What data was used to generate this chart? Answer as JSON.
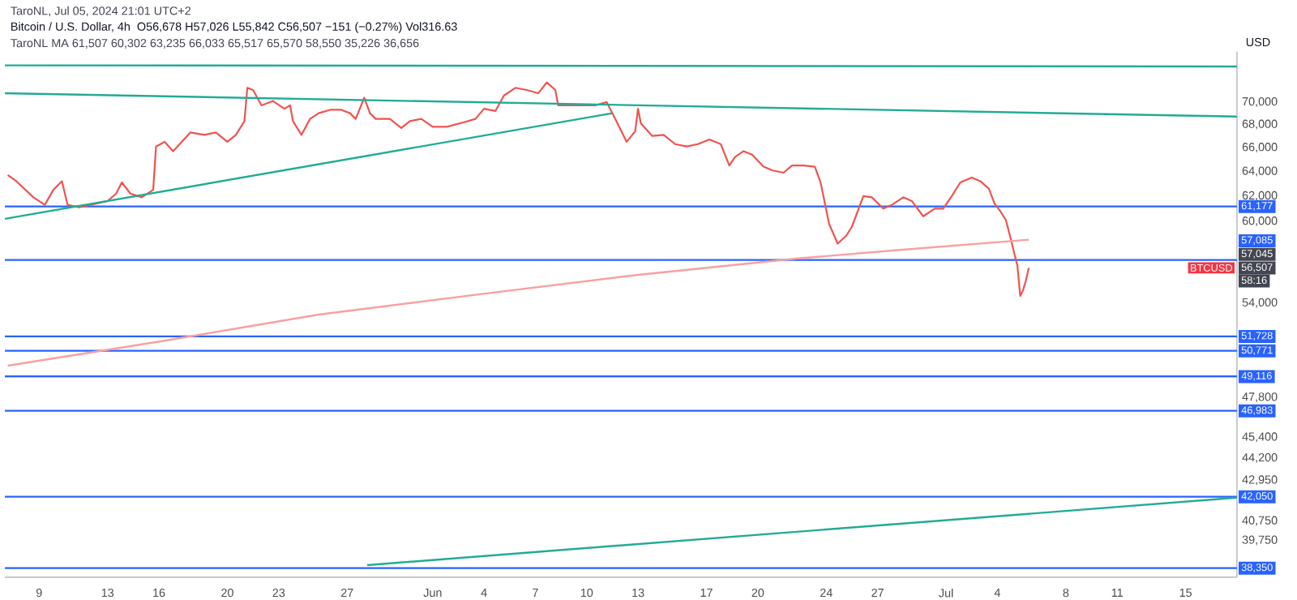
{
  "chart_data": {
    "type": "line",
    "title": "Bitcoin / U.S. Dollar, 4h",
    "subtitle": "O56,678 H57,026 L55,842 C56,507 −151 (−0.27%) Vol316.63",
    "ylabel": "USD",
    "log": "y",
    "xlim": [
      "2024-05-07",
      "2024-07-18"
    ],
    "ylim": [
      37900,
      74700
    ],
    "xticks": [
      {
        "value": "2024-05-09",
        "label": "9"
      },
      {
        "value": "2024-05-13",
        "label": "13"
      },
      {
        "value": "2024-05-16",
        "label": "16"
      },
      {
        "value": "2024-05-20",
        "label": "20"
      },
      {
        "value": "2024-05-23",
        "label": "23"
      },
      {
        "value": "2024-05-27",
        "label": "27"
      },
      {
        "value": "2024-06-01",
        "label": "Jun"
      },
      {
        "value": "2024-06-04",
        "label": "4"
      },
      {
        "value": "2024-06-07",
        "label": "7"
      },
      {
        "value": "2024-06-10",
        "label": "10"
      },
      {
        "value": "2024-06-13",
        "label": "13"
      },
      {
        "value": "2024-06-17",
        "label": "17"
      },
      {
        "value": "2024-06-20",
        "label": "20"
      },
      {
        "value": "2024-06-24",
        "label": "24"
      },
      {
        "value": "2024-06-27",
        "label": "27"
      },
      {
        "value": "2024-07-01",
        "label": "Jul"
      },
      {
        "value": "2024-07-04",
        "label": "4"
      },
      {
        "value": "2024-07-08",
        "label": "8"
      },
      {
        "value": "2024-07-11",
        "label": "11"
      },
      {
        "value": "2024-07-15",
        "label": "15"
      }
    ],
    "yticks": [
      {
        "value": 70000,
        "label": "70,000"
      },
      {
        "value": 68000,
        "label": "68,000"
      },
      {
        "value": 66000,
        "label": "66,000"
      },
      {
        "value": 64000,
        "label": "64,000"
      },
      {
        "value": 62000,
        "label": "62,000"
      },
      {
        "value": 60000,
        "label": "60,000"
      },
      {
        "value": 54000,
        "label": "54,000"
      },
      {
        "value": 47800,
        "label": "47,800"
      },
      {
        "value": 45400,
        "label": "45,400"
      },
      {
        "value": 44200,
        "label": "44,200"
      },
      {
        "value": 42950,
        "label": "42,950"
      },
      {
        "value": 40750,
        "label": "40,750"
      },
      {
        "value": 39750,
        "label": "39,750"
      }
    ],
    "series": [
      {
        "color": "#ef5350",
        "x": [
          "2024-05-07T04:00",
          "2024-05-07T16:00",
          "2024-05-08T16:00",
          "2024-05-09T08:00",
          "2024-05-09T20:00",
          "2024-05-10T08:00",
          "2024-05-10T16:00",
          "2024-05-11T08:00",
          "2024-05-12T08:00",
          "2024-05-13T00:00",
          "2024-05-13T12:00",
          "2024-05-13T20:00",
          "2024-05-14T08:00",
          "2024-05-15T00:00",
          "2024-05-15T16:00",
          "2024-05-15T20:00",
          "2024-05-16T08:00",
          "2024-05-16T20:00",
          "2024-05-17T08:00",
          "2024-05-17T20:00",
          "2024-05-18T16:00",
          "2024-05-19T08:00",
          "2024-05-20T00:00",
          "2024-05-20T12:00",
          "2024-05-21T00:00",
          "2024-05-21T04:00",
          "2024-05-21T12:00",
          "2024-05-22T00:00",
          "2024-05-22T16:00",
          "2024-05-23T08:00",
          "2024-05-23T16:00",
          "2024-05-23T20:00",
          "2024-05-24T08:00",
          "2024-05-24T20:00",
          "2024-05-25T08:00",
          "2024-05-26T00:00",
          "2024-05-26T16:00",
          "2024-05-27T04:00",
          "2024-05-27T12:00",
          "2024-05-28T00:00",
          "2024-05-28T08:00",
          "2024-05-28T16:00",
          "2024-05-29T12:00",
          "2024-05-30T04:00",
          "2024-05-30T16:00",
          "2024-05-31T08:00",
          "2024-06-01T00:00",
          "2024-06-01T20:00",
          "2024-06-02T20:00",
          "2024-06-03T12:00",
          "2024-06-04T00:00",
          "2024-06-04T16:00",
          "2024-06-05T04:00",
          "2024-06-05T20:00",
          "2024-06-06T12:00",
          "2024-06-07T04:00",
          "2024-06-07T16:00",
          "2024-06-08T04:00",
          "2024-06-08T08:00",
          "2024-06-09T08:00",
          "2024-06-10T12:00",
          "2024-06-11T04:00",
          "2024-06-11T16:00",
          "2024-06-12T04:00",
          "2024-06-12T08:00",
          "2024-06-12T20:00",
          "2024-06-13T00:00",
          "2024-06-13T04:00",
          "2024-06-13T20:00",
          "2024-06-14T12:00",
          "2024-06-15T04:00",
          "2024-06-15T20:00",
          "2024-06-16T12:00",
          "2024-06-17T04:00",
          "2024-06-17T20:00",
          "2024-06-18T08:00",
          "2024-06-18T16:00",
          "2024-06-19T04:00",
          "2024-06-19T16:00",
          "2024-06-20T08:00",
          "2024-06-20T20:00",
          "2024-06-21T12:00",
          "2024-06-22T00:00",
          "2024-06-22T16:00",
          "2024-06-23T08:00",
          "2024-06-23T16:00",
          "2024-06-24T04:00",
          "2024-06-24T16:00",
          "2024-06-25T04:00",
          "2024-06-25T12:00",
          "2024-06-26T04:00",
          "2024-06-26T16:00",
          "2024-06-27T08:00",
          "2024-06-27T20:00",
          "2024-06-28T12:00",
          "2024-06-29T00:00",
          "2024-06-29T16:00",
          "2024-06-30T08:00",
          "2024-06-30T20:00",
          "2024-07-01T08:00",
          "2024-07-01T20:00",
          "2024-07-02T12:00",
          "2024-07-03T00:00",
          "2024-07-03T12:00",
          "2024-07-03T20:00",
          "2024-07-04T04:00",
          "2024-07-04T12:00",
          "2024-07-04T20:00",
          "2024-07-05T00:00",
          "2024-07-05T04:00",
          "2024-07-05T08:00",
          "2024-07-05T12:00",
          "2024-07-05T16:00",
          "2024-07-05T20:00"
        ],
        "values": [
          63700,
          63200,
          61900,
          61300,
          62500,
          63200,
          61300,
          61100,
          61400,
          61600,
          62200,
          63100,
          62200,
          61900,
          62500,
          66100,
          66500,
          65700,
          66500,
          67300,
          67100,
          67300,
          66500,
          67100,
          68300,
          71300,
          71100,
          69700,
          70100,
          69400,
          69700,
          68300,
          67100,
          68500,
          69000,
          69300,
          69300,
          69000,
          68500,
          70400,
          69000,
          68500,
          68500,
          67700,
          68300,
          68500,
          67800,
          67800,
          68200,
          68500,
          69400,
          69200,
          70600,
          71300,
          71100,
          70800,
          71800,
          71100,
          69700,
          69700,
          69700,
          70000,
          68500,
          67000,
          66500,
          67400,
          69400,
          68100,
          67000,
          67100,
          66300,
          66100,
          66300,
          66700,
          66300,
          64500,
          65200,
          65700,
          65400,
          64400,
          64100,
          63900,
          64500,
          64500,
          64400,
          63100,
          59800,
          58300,
          58900,
          59600,
          62000,
          61900,
          61000,
          61300,
          61900,
          61600,
          60400,
          61000,
          61000,
          62000,
          63100,
          63500,
          63200,
          62600,
          61400,
          60800,
          60100,
          58400,
          57500,
          56700,
          54500,
          54900,
          55600,
          56507
        ]
      },
      {
        "color": "#f7a1a1",
        "x": [
          "2024-05-07T04:00",
          "2024-05-16T04:00",
          "2024-05-25T08:00",
          "2024-06-03T16:00",
          "2024-06-13T00:00",
          "2024-06-22T08:00",
          "2024-06-28T00:00",
          "2024-07-05T20:00"
        ],
        "values": [
          49800,
          51400,
          53200,
          54600,
          56000,
          57200,
          57800,
          58600
        ]
      },
      {
        "color": "#22ab94",
        "x": [
          "2024-05-07",
          "2024-07-18"
        ],
        "values": [
          73400,
          73300
        ]
      },
      {
        "color": "#22ab94",
        "x": [
          "2024-05-07",
          "2024-07-18"
        ],
        "values": [
          70800,
          68700
        ]
      },
      {
        "color": "#22ab94",
        "x": [
          "2024-05-07",
          "2024-06-11T12:00"
        ],
        "values": [
          60200,
          69000
        ]
      },
      {
        "color": "#22ab94",
        "x": [
          "2024-05-28T04:00",
          "2024-07-18"
        ],
        "values": [
          38500,
          42000
        ]
      }
    ],
    "ref_lines": [
      {
        "axis": "y",
        "value": 61177,
        "label": "61,177",
        "color": "#2962ff"
      },
      {
        "axis": "y",
        "value": 57085,
        "label": "57,085",
        "color": "#2962ff"
      },
      {
        "axis": "y",
        "value": 51728,
        "label": "51,728",
        "color": "#2962ff"
      },
      {
        "axis": "y",
        "value": 50771,
        "label": "50,771",
        "color": "#2962ff"
      },
      {
        "axis": "y",
        "value": 49116,
        "label": "49,116",
        "color": "#2962ff"
      },
      {
        "axis": "y",
        "value": 46983,
        "label": "46,983",
        "color": "#2962ff"
      },
      {
        "axis": "y",
        "value": 42050,
        "label": "42,050",
        "color": "#2962ff"
      },
      {
        "axis": "y",
        "value": 38350,
        "label": "38,350",
        "color": "#2962ff"
      }
    ],
    "annotations": [
      "TaroNL, Jul 05, 2024 21:01 UTC+2",
      "TaroNL MA 61,507 60,302 63,235 66,033 65,517 65,570 58,550 35,226 36,656",
      "58:16",
      {
        "text": "57,045",
        "x": "2024-07-18",
        "y": 57045
      },
      {
        "text": "56,507",
        "x": "2024-07-18",
        "y": 56507
      },
      {
        "text": "BTCUSD",
        "x": "2024-07-16T12:00",
        "y": 56507
      }
    ]
  }
}
